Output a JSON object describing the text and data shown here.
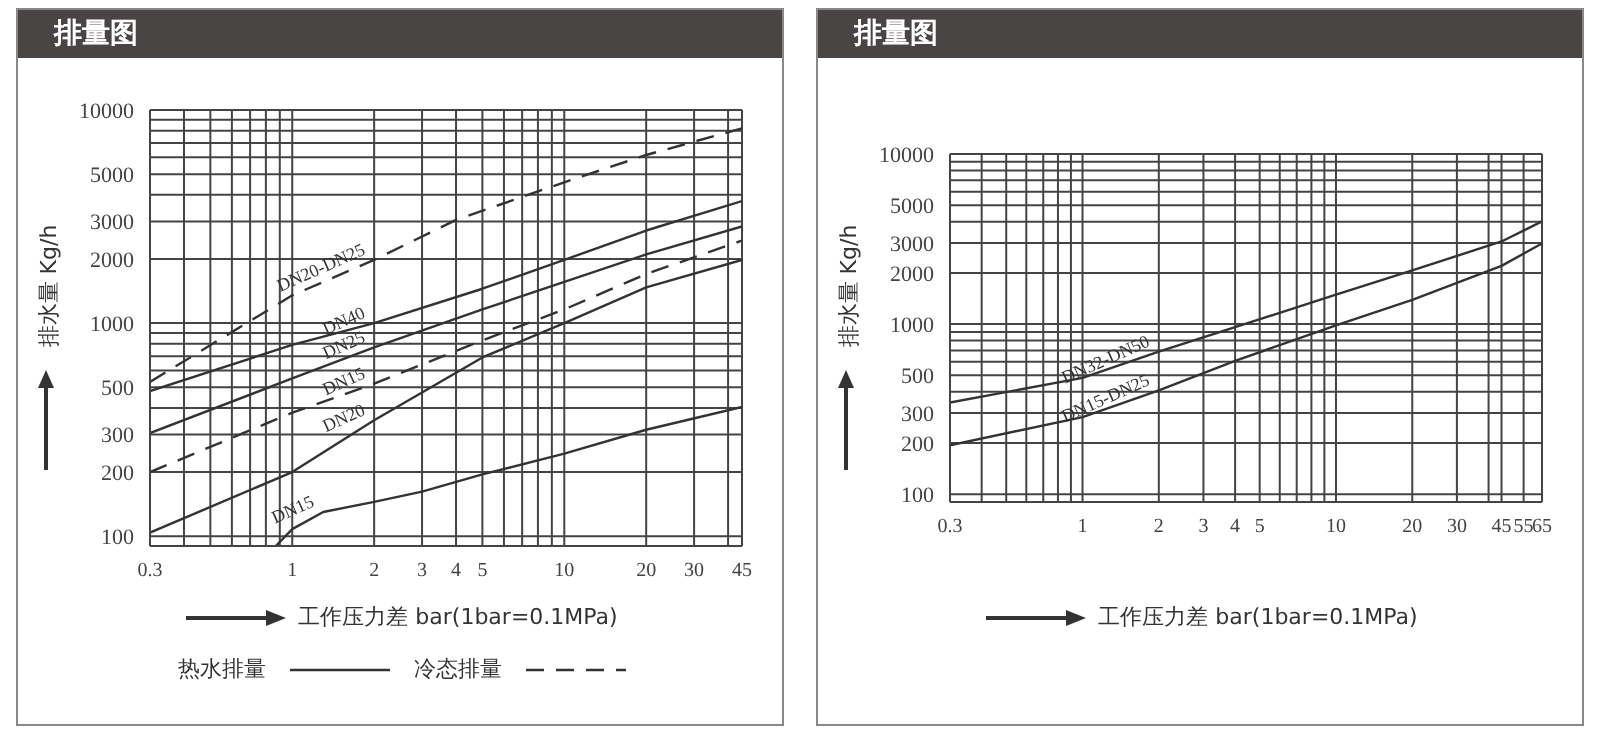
{
  "chart_data": [
    {
      "type": "line",
      "title": "排量图",
      "xlabel": "工作压力差 bar(1bar=0.1MPa)",
      "ylabel": "排水量 Kg/h",
      "log": "xy",
      "grid": true,
      "marker": "none",
      "xlim": [
        0.3,
        45
      ],
      "ylim": [
        90,
        10000
      ],
      "xticks": [
        {
          "value": 0.3,
          "label": "0.3"
        },
        {
          "value": 0.4,
          "label": null
        },
        {
          "value": 0.5,
          "label": null
        },
        {
          "value": 0.6,
          "label": null
        },
        {
          "value": 0.7,
          "label": null
        },
        {
          "value": 0.8,
          "label": null
        },
        {
          "value": 0.9,
          "label": null
        },
        1,
        2,
        3,
        4,
        5,
        {
          "value": 6,
          "label": null
        },
        {
          "value": 7,
          "label": null
        },
        {
          "value": 8,
          "label": null
        },
        {
          "value": 9,
          "label": null
        },
        10,
        20,
        30,
        {
          "value": 40,
          "label": null
        },
        45
      ],
      "yticks": [
        100,
        200,
        300,
        {
          "value": 400,
          "label": null
        },
        500,
        {
          "value": 600,
          "label": null
        },
        {
          "value": 700,
          "label": null
        },
        {
          "value": 800,
          "label": null
        },
        {
          "value": 900,
          "label": null
        },
        1000,
        2000,
        3000,
        {
          "value": 4000,
          "label": null
        },
        5000,
        {
          "value": 6000,
          "label": null
        },
        {
          "value": 7000,
          "label": null
        },
        {
          "value": 8000,
          "label": null
        },
        {
          "value": 9000,
          "label": null
        },
        10000
      ],
      "annotations": [
        "热水排量",
        "冷态排量"
      ],
      "series": [
        {
          "name": "DN20-DN25",
          "color": "#333333",
          "line_style": "dashed",
          "x": [
            0.3,
            1,
            2,
            4,
            10,
            20,
            45
          ],
          "values": [
            530,
            1350,
            1980,
            3050,
            4580,
            6150,
            8200
          ]
        },
        {
          "name": "DN40",
          "color": "#333333",
          "line_style": "solid",
          "x": [
            0.3,
            1,
            2,
            5,
            10,
            20,
            45
          ],
          "values": [
            480,
            790,
            1000,
            1450,
            1980,
            2720,
            3740
          ]
        },
        {
          "name": "DN25",
          "color": "#333333",
          "line_style": "solid",
          "x": [
            0.3,
            1,
            2,
            5,
            10,
            20,
            45
          ],
          "values": [
            305,
            550,
            770,
            1160,
            1560,
            2100,
            2840
          ]
        },
        {
          "name": "DN15",
          "color": "#333333",
          "line_style": "dashed",
          "x": [
            0.3,
            1,
            2,
            5,
            10,
            20,
            45
          ],
          "values": [
            200,
            380,
            520,
            830,
            1160,
            1700,
            2440
          ]
        },
        {
          "name": "DN20",
          "color": "#333333",
          "line_style": "solid",
          "x": [
            0.3,
            1,
            2,
            5,
            10,
            20,
            45
          ],
          "values": [
            104,
            200,
            350,
            690,
            1000,
            1470,
            1980
          ]
        },
        {
          "name": "DN15",
          "color": "#333333",
          "line_style": "solid",
          "x": [
            0.87,
            1,
            1.3,
            2,
            3,
            5,
            10,
            20,
            45
          ],
          "values": [
            90,
            108,
            130,
            145,
            162,
            195,
            244,
            316,
            404
          ]
        }
      ]
    },
    {
      "type": "line",
      "title": "排量图",
      "xlabel": "工作压力差 bar(1bar=0.1MPa)",
      "ylabel": "排水量 Kg/h",
      "log": "xy",
      "grid": true,
      "marker": "none",
      "xlim": [
        0.3,
        65
      ],
      "ylim": [
        90,
        10000
      ],
      "xticks": [
        {
          "value": 0.3,
          "label": "0.3"
        },
        {
          "value": 0.4,
          "label": null
        },
        {
          "value": 0.5,
          "label": null
        },
        {
          "value": 0.6,
          "label": null
        },
        {
          "value": 0.7,
          "label": null
        },
        {
          "value": 0.8,
          "label": null
        },
        {
          "value": 0.9,
          "label": null
        },
        1,
        2,
        3,
        4,
        5,
        {
          "value": 6,
          "label": null
        },
        {
          "value": 7,
          "label": null
        },
        {
          "value": 8,
          "label": null
        },
        {
          "value": 9,
          "label": null
        },
        10,
        20,
        30,
        {
          "value": 40,
          "label": null
        },
        45,
        55,
        65
      ],
      "yticks": [
        100,
        200,
        300,
        {
          "value": 400,
          "label": null
        },
        500,
        {
          "value": 600,
          "label": null
        },
        {
          "value": 700,
          "label": null
        },
        {
          "value": 800,
          "label": null
        },
        {
          "value": 900,
          "label": null
        },
        1000,
        2000,
        3000,
        {
          "value": 4000,
          "label": null
        },
        5000,
        {
          "value": 6000,
          "label": null
        },
        {
          "value": 7000,
          "label": null
        },
        {
          "value": 8000,
          "label": null
        },
        {
          "value": 9000,
          "label": null
        },
        10000
      ],
      "series": [
        {
          "name": "DN32-DN50",
          "color": "#333333",
          "line_style": "solid",
          "x": [
            0.3,
            1,
            2,
            4,
            10,
            20,
            45,
            65
          ],
          "values": [
            346,
            483,
            689,
            960,
            1490,
            2070,
            3060,
            4020
          ]
        },
        {
          "name": "DN15-DN25",
          "color": "#333333",
          "line_style": "solid",
          "x": [
            0.3,
            1,
            2,
            4,
            10,
            20,
            45,
            65
          ],
          "values": [
            194,
            284,
            408,
            608,
            983,
            1390,
            2200,
            2980
          ]
        }
      ]
    }
  ]
}
